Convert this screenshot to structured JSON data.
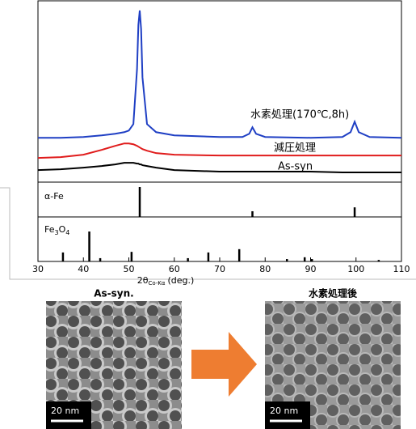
{
  "chart_data": {
    "type": "line",
    "x": [
      30,
      35,
      40,
      44,
      47,
      49,
      50,
      51,
      51.8,
      52.1,
      52.4,
      52.7,
      53,
      54,
      56,
      60,
      70,
      75,
      76.5,
      77.2,
      78,
      80,
      90,
      97,
      98.8,
      99.7,
      100.6,
      103,
      110
    ],
    "xlim": [
      30,
      110
    ],
    "xticks": [
      30,
      40,
      50,
      60,
      70,
      80,
      90,
      100,
      110
    ],
    "xlabel": "2θ",
    "xlabel_sub": "Co-Kα",
    "xlabel_unit": "(deg.)",
    "ylim": [
      0,
      225
    ],
    "series": [
      {
        "name": "水素処理(170℃,8h)",
        "color": "#1f3fc4",
        "values": [
          55,
          55,
          56,
          58,
          60,
          62,
          64,
          72,
          140,
          195,
          213,
          190,
          130,
          72,
          62,
          58,
          56,
          56,
          60,
          68,
          60,
          56,
          55,
          56,
          62,
          75,
          62,
          56,
          55
        ]
      },
      {
        "name": "減圧処理",
        "color": "#e01c1c",
        "values": [
          30,
          31,
          34,
          40,
          45,
          48,
          48,
          47,
          45,
          44,
          43,
          42,
          41,
          39,
          36,
          34,
          33,
          33,
          33,
          33,
          33,
          33,
          33,
          33,
          33,
          33,
          33,
          33,
          33
        ]
      },
      {
        "name": "As-syn",
        "color": "#000000",
        "values": [
          15,
          16,
          18,
          20,
          22,
          24,
          24,
          24,
          23,
          23,
          22,
          22,
          21,
          20,
          18,
          15,
          13,
          13,
          13,
          13,
          13,
          13,
          13,
          12,
          12,
          12,
          12,
          12,
          12
        ]
      }
    ],
    "references": [
      {
        "name": "α-Fe",
        "ylim": [
          0,
          100
        ],
        "x": [
          52.4,
          77.2,
          99.7
        ],
        "values": [
          100,
          19,
          32
        ]
      },
      {
        "name": "Fe3O4",
        "ylim": [
          0,
          100
        ],
        "x": [
          35.5,
          41.3,
          43.7,
          50.6,
          63,
          67.5,
          74.3,
          84.8,
          88.7,
          90.3,
          105
        ],
        "values": [
          30,
          100,
          11,
          32,
          11,
          30,
          41,
          8,
          14,
          8,
          5
        ]
      }
    ]
  },
  "images": [
    {
      "title": "As-syn.",
      "scale": "20 nm"
    },
    {
      "title": "水素処理後",
      "scale": "20 nm"
    }
  ]
}
